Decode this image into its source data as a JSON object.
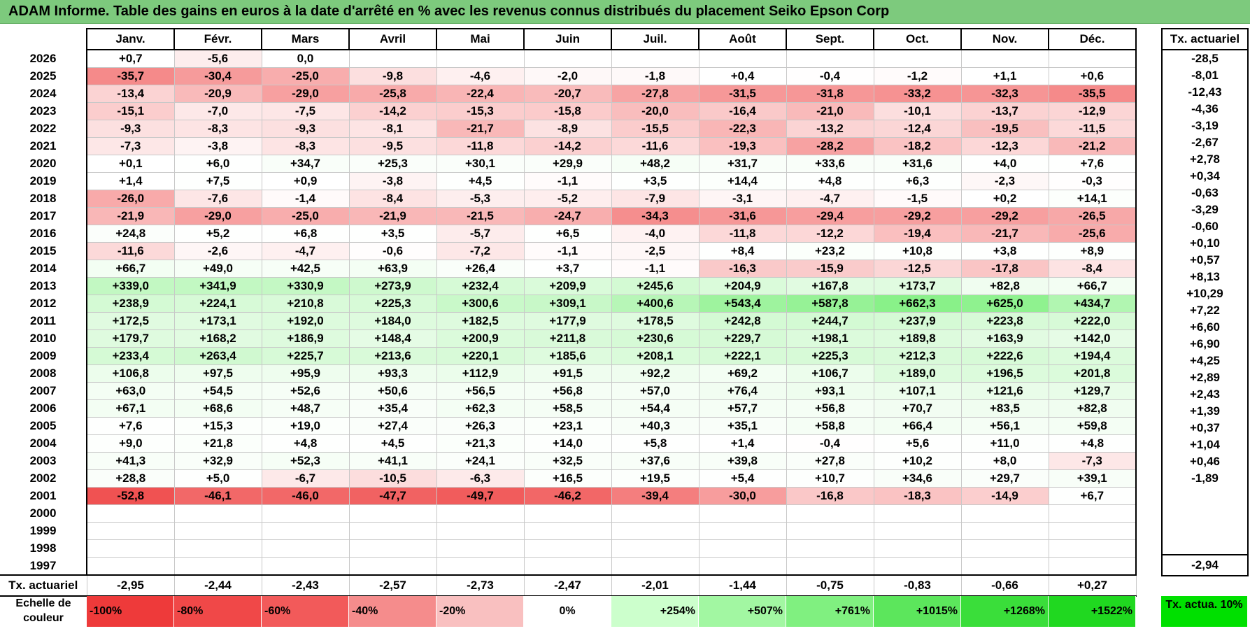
{
  "title": "ADAM Informe. Table des gains en euros à la date d'arrêté en % avec les revenus connus distribués du placement Seiko Epson Corp",
  "months": [
    "Janv.",
    "Févr.",
    "Mars",
    "Avril",
    "Mai",
    "Juin",
    "Juil.",
    "Août",
    "Sept.",
    "Oct.",
    "Nov.",
    "Déc."
  ],
  "actu_header": "Tx. actuariel",
  "rows": [
    {
      "year": "2026",
      "values": [
        "+0,7",
        "-5,6",
        "0,0",
        "",
        "",
        "",
        "",
        "",
        "",
        "",
        "",
        ""
      ],
      "actu": "-28,5"
    },
    {
      "year": "2025",
      "values": [
        "-35,7",
        "-30,4",
        "-25,0",
        "-9,8",
        "-4,6",
        "-2,0",
        "-1,8",
        "+0,4",
        "-0,4",
        "-1,2",
        "+1,1",
        "+0,6"
      ],
      "actu": "-8,01"
    },
    {
      "year": "2024",
      "values": [
        "-13,4",
        "-20,9",
        "-29,0",
        "-25,8",
        "-22,4",
        "-20,7",
        "-27,8",
        "-31,5",
        "-31,8",
        "-33,2",
        "-32,3",
        "-35,5"
      ],
      "actu": "-12,43"
    },
    {
      "year": "2023",
      "values": [
        "-15,1",
        "-7,0",
        "-7,5",
        "-14,2",
        "-15,3",
        "-15,8",
        "-20,0",
        "-16,4",
        "-21,0",
        "-10,1",
        "-13,7",
        "-12,9"
      ],
      "actu": "-4,36"
    },
    {
      "year": "2022",
      "values": [
        "-9,3",
        "-8,3",
        "-9,3",
        "-8,1",
        "-21,7",
        "-8,9",
        "-15,5",
        "-22,3",
        "-13,2",
        "-12,4",
        "-19,5",
        "-11,5"
      ],
      "actu": "-3,19"
    },
    {
      "year": "2021",
      "values": [
        "-7,3",
        "-3,8",
        "-8,3",
        "-9,5",
        "-11,8",
        "-14,2",
        "-11,6",
        "-19,3",
        "-28,2",
        "-18,2",
        "-12,3",
        "-21,2"
      ],
      "actu": "-2,67"
    },
    {
      "year": "2020",
      "values": [
        "+0,1",
        "+6,0",
        "+34,7",
        "+25,3",
        "+30,1",
        "+29,9",
        "+48,2",
        "+31,7",
        "+33,6",
        "+31,6",
        "+4,0",
        "+7,6"
      ],
      "actu": "+2,78"
    },
    {
      "year": "2019",
      "values": [
        "+1,4",
        "+7,5",
        "+0,9",
        "-3,8",
        "+4,5",
        "-1,1",
        "+3,5",
        "+14,4",
        "+4,8",
        "+6,3",
        "-2,3",
        "-0,3"
      ],
      "actu": "+0,34"
    },
    {
      "year": "2018",
      "values": [
        "-26,0",
        "-7,6",
        "-1,4",
        "-8,4",
        "-5,3",
        "-5,2",
        "-7,9",
        "-3,1",
        "-4,7",
        "-1,5",
        "+0,2",
        "+14,1"
      ],
      "actu": "-0,63"
    },
    {
      "year": "2017",
      "values": [
        "-21,9",
        "-29,0",
        "-25,0",
        "-21,9",
        "-21,5",
        "-24,7",
        "-34,3",
        "-31,6",
        "-29,4",
        "-29,2",
        "-29,2",
        "-26,5"
      ],
      "actu": "-3,29"
    },
    {
      "year": "2016",
      "values": [
        "+24,8",
        "+5,2",
        "+6,8",
        "+3,5",
        "-5,7",
        "+6,5",
        "-4,0",
        "-11,8",
        "-12,2",
        "-19,4",
        "-21,7",
        "-25,6"
      ],
      "actu": "-0,60"
    },
    {
      "year": "2015",
      "values": [
        "-11,6",
        "-2,6",
        "-4,7",
        "-0,6",
        "-7,2",
        "-1,1",
        "-2,5",
        "+8,4",
        "+23,2",
        "+10,8",
        "+3,8",
        "+8,9"
      ],
      "actu": "+0,10"
    },
    {
      "year": "2014",
      "values": [
        "+66,7",
        "+49,0",
        "+42,5",
        "+63,9",
        "+26,4",
        "+3,7",
        "-1,1",
        "-16,3",
        "-15,9",
        "-12,5",
        "-17,8",
        "-8,4"
      ],
      "actu": "+0,57"
    },
    {
      "year": "2013",
      "values": [
        "+339,0",
        "+341,9",
        "+330,9",
        "+273,9",
        "+232,4",
        "+209,9",
        "+245,6",
        "+204,9",
        "+167,8",
        "+173,7",
        "+82,8",
        "+66,7"
      ],
      "actu": "+8,13"
    },
    {
      "year": "2012",
      "values": [
        "+238,9",
        "+224,1",
        "+210,8",
        "+225,3",
        "+300,6",
        "+309,1",
        "+400,6",
        "+543,4",
        "+587,8",
        "+662,3",
        "+625,0",
        "+434,7"
      ],
      "actu": "+10,29"
    },
    {
      "year": "2011",
      "values": [
        "+172,5",
        "+173,1",
        "+192,0",
        "+184,0",
        "+182,5",
        "+177,9",
        "+178,5",
        "+242,8",
        "+244,7",
        "+237,9",
        "+223,8",
        "+222,0"
      ],
      "actu": "+7,22"
    },
    {
      "year": "2010",
      "values": [
        "+179,7",
        "+168,2",
        "+186,9",
        "+148,4",
        "+200,9",
        "+211,8",
        "+230,6",
        "+229,7",
        "+198,1",
        "+189,8",
        "+163,9",
        "+142,0"
      ],
      "actu": "+6,60"
    },
    {
      "year": "2009",
      "values": [
        "+233,4",
        "+263,4",
        "+225,7",
        "+213,6",
        "+220,1",
        "+185,6",
        "+208,1",
        "+222,1",
        "+225,3",
        "+212,3",
        "+222,6",
        "+194,4"
      ],
      "actu": "+6,90"
    },
    {
      "year": "2008",
      "values": [
        "+106,8",
        "+97,5",
        "+95,9",
        "+93,3",
        "+112,9",
        "+91,5",
        "+92,2",
        "+69,2",
        "+106,7",
        "+189,0",
        "+196,5",
        "+201,8"
      ],
      "actu": "+4,25"
    },
    {
      "year": "2007",
      "values": [
        "+63,0",
        "+54,5",
        "+52,6",
        "+50,6",
        "+56,5",
        "+56,8",
        "+57,0",
        "+76,4",
        "+93,1",
        "+107,1",
        "+121,6",
        "+129,7"
      ],
      "actu": "+2,89"
    },
    {
      "year": "2006",
      "values": [
        "+67,1",
        "+68,6",
        "+48,7",
        "+35,4",
        "+62,3",
        "+58,5",
        "+54,4",
        "+57,7",
        "+56,8",
        "+70,7",
        "+83,5",
        "+82,8"
      ],
      "actu": "+2,43"
    },
    {
      "year": "2005",
      "values": [
        "+7,6",
        "+15,3",
        "+19,0",
        "+27,4",
        "+26,3",
        "+23,1",
        "+40,3",
        "+35,1",
        "+58,8",
        "+66,4",
        "+56,1",
        "+59,8"
      ],
      "actu": "+1,39"
    },
    {
      "year": "2004",
      "values": [
        "+9,0",
        "+21,8",
        "+4,8",
        "+4,5",
        "+21,3",
        "+14,0",
        "+5,8",
        "+1,4",
        "-0,4",
        "+5,6",
        "+11,0",
        "+4,8"
      ],
      "actu": "+0,37"
    },
    {
      "year": "2003",
      "values": [
        "+41,3",
        "+32,9",
        "+52,3",
        "+41,1",
        "+24,1",
        "+32,5",
        "+37,6",
        "+39,8",
        "+27,8",
        "+10,2",
        "+8,0",
        "-7,3"
      ],
      "actu": "+1,04"
    },
    {
      "year": "2002",
      "values": [
        "+28,8",
        "+5,0",
        "-6,7",
        "-10,5",
        "-6,3",
        "+16,5",
        "+19,5",
        "+5,4",
        "+10,7",
        "+34,6",
        "+29,7",
        "+39,1"
      ],
      "actu": "+0,46"
    },
    {
      "year": "2001",
      "values": [
        "-52,8",
        "-46,1",
        "-46,0",
        "-47,7",
        "-49,7",
        "-46,2",
        "-39,4",
        "-30,0",
        "-16,8",
        "-18,3",
        "-14,9",
        "+6,7"
      ],
      "actu": "-1,89"
    },
    {
      "year": "2000",
      "values": [
        "",
        "",
        "",
        "",
        "",
        "",
        "",
        "",
        "",
        "",
        "",
        ""
      ],
      "actu": ""
    },
    {
      "year": "1999",
      "values": [
        "",
        "",
        "",
        "",
        "",
        "",
        "",
        "",
        "",
        "",
        "",
        ""
      ],
      "actu": ""
    },
    {
      "year": "1998",
      "values": [
        "",
        "",
        "",
        "",
        "",
        "",
        "",
        "",
        "",
        "",
        "",
        ""
      ],
      "actu": ""
    },
    {
      "year": "1997",
      "values": [
        "",
        "",
        "",
        "",
        "",
        "",
        "",
        "",
        "",
        "",
        "",
        ""
      ],
      "actu": ""
    }
  ],
  "footer": {
    "label": "Tx. actuariel",
    "values": [
      "-2,95",
      "-2,44",
      "-2,43",
      "-2,57",
      "-2,73",
      "-2,47",
      "-2,01",
      "-1,44",
      "-0,75",
      "-0,83",
      "-0,66",
      "+0,27"
    ],
    "actu": "-2,94"
  },
  "scale": {
    "label": "Echelle de couleur",
    "cells": [
      {
        "text": "-100%",
        "color": "#ee3a3a",
        "kind": "neg"
      },
      {
        "text": "-80%",
        "color": "#f04848",
        "kind": "neg"
      },
      {
        "text": "-60%",
        "color": "#f25a5a",
        "kind": "neg"
      },
      {
        "text": "-40%",
        "color": "#f58c8c",
        "kind": "neg"
      },
      {
        "text": "-20%",
        "color": "#f9c0c0",
        "kind": "neg"
      },
      {
        "text": "0%",
        "color": "#ffffff",
        "kind": "zero"
      },
      {
        "text": "+254%",
        "color": "#ccffcc",
        "kind": "pos"
      },
      {
        "text": "+507%",
        "color": "#a2f7a2",
        "kind": "pos"
      },
      {
        "text": "+761%",
        "color": "#80f080",
        "kind": "pos"
      },
      {
        "text": "+1015%",
        "color": "#5ce65c",
        "kind": "pos"
      },
      {
        "text": "+1268%",
        "color": "#3ade3a",
        "kind": "pos"
      },
      {
        "text": "+1522%",
        "color": "#20d820",
        "kind": "pos"
      }
    ],
    "actu_label": "Tx. actua. 10%",
    "actu_color": "#00e000"
  },
  "colors": {
    "title_bg": "#7dca7d",
    "negative": "#ee3a3a",
    "positive": "#20d820"
  }
}
